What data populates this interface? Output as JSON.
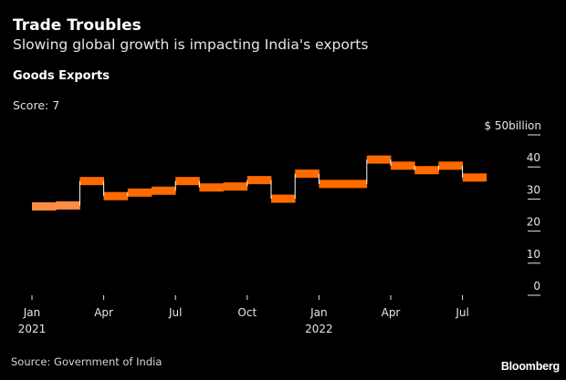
{
  "header": {
    "title": "Trade Troubles",
    "subtitle": "Slowing global growth is impacting India's exports",
    "section": "Goods Exports",
    "score": "Score: 7"
  },
  "footer": {
    "source": "Source: Government of India",
    "brand": "Bloomberg"
  },
  "colors": {
    "background": "#000000",
    "bar": "#ff6a00",
    "bar_highlight": "#ff8c42",
    "connector": "#ffffff",
    "text": "#e6e6e6"
  },
  "chart_data": {
    "type": "step",
    "title": "Goods Exports",
    "xlabel": "",
    "ylabel": "$ billion",
    "y_unit_label": "$ 50billion",
    "ylim": [
      0,
      50
    ],
    "yticks": [
      0,
      10,
      20,
      30,
      40,
      50
    ],
    "ytick_labels": [
      "0",
      "10",
      "20",
      "30",
      "40",
      "$ 50billion"
    ],
    "y_axis_side": "right",
    "grid": false,
    "x": [
      "2021-01",
      "2021-02",
      "2021-03",
      "2021-04",
      "2021-05",
      "2021-06",
      "2021-07",
      "2021-08",
      "2021-09",
      "2021-10",
      "2021-11",
      "2021-12",
      "2022-01",
      "2022-02",
      "2022-03",
      "2022-04",
      "2022-05",
      "2022-06",
      "2022-07"
    ],
    "xticks": [
      {
        "index": 0,
        "label": "Jan",
        "sublabel": "2021"
      },
      {
        "index": 3,
        "label": "Apr",
        "sublabel": ""
      },
      {
        "index": 6,
        "label": "Jul",
        "sublabel": ""
      },
      {
        "index": 9,
        "label": "Oct",
        "sublabel": ""
      },
      {
        "index": 12,
        "label": "Jan",
        "sublabel": "2022"
      },
      {
        "index": 15,
        "label": "Apr",
        "sublabel": ""
      },
      {
        "index": 18,
        "label": "Jul",
        "sublabel": ""
      }
    ],
    "series": [
      {
        "name": "Goods Exports",
        "values": [
          27.7,
          28.0,
          35.6,
          30.9,
          32.0,
          32.6,
          35.6,
          33.6,
          33.9,
          35.9,
          30.1,
          37.9,
          34.7,
          34.7,
          42.3,
          40.4,
          39.0,
          40.4,
          36.7
        ],
        "highlighted_indices": [
          0,
          1
        ]
      }
    ]
  }
}
